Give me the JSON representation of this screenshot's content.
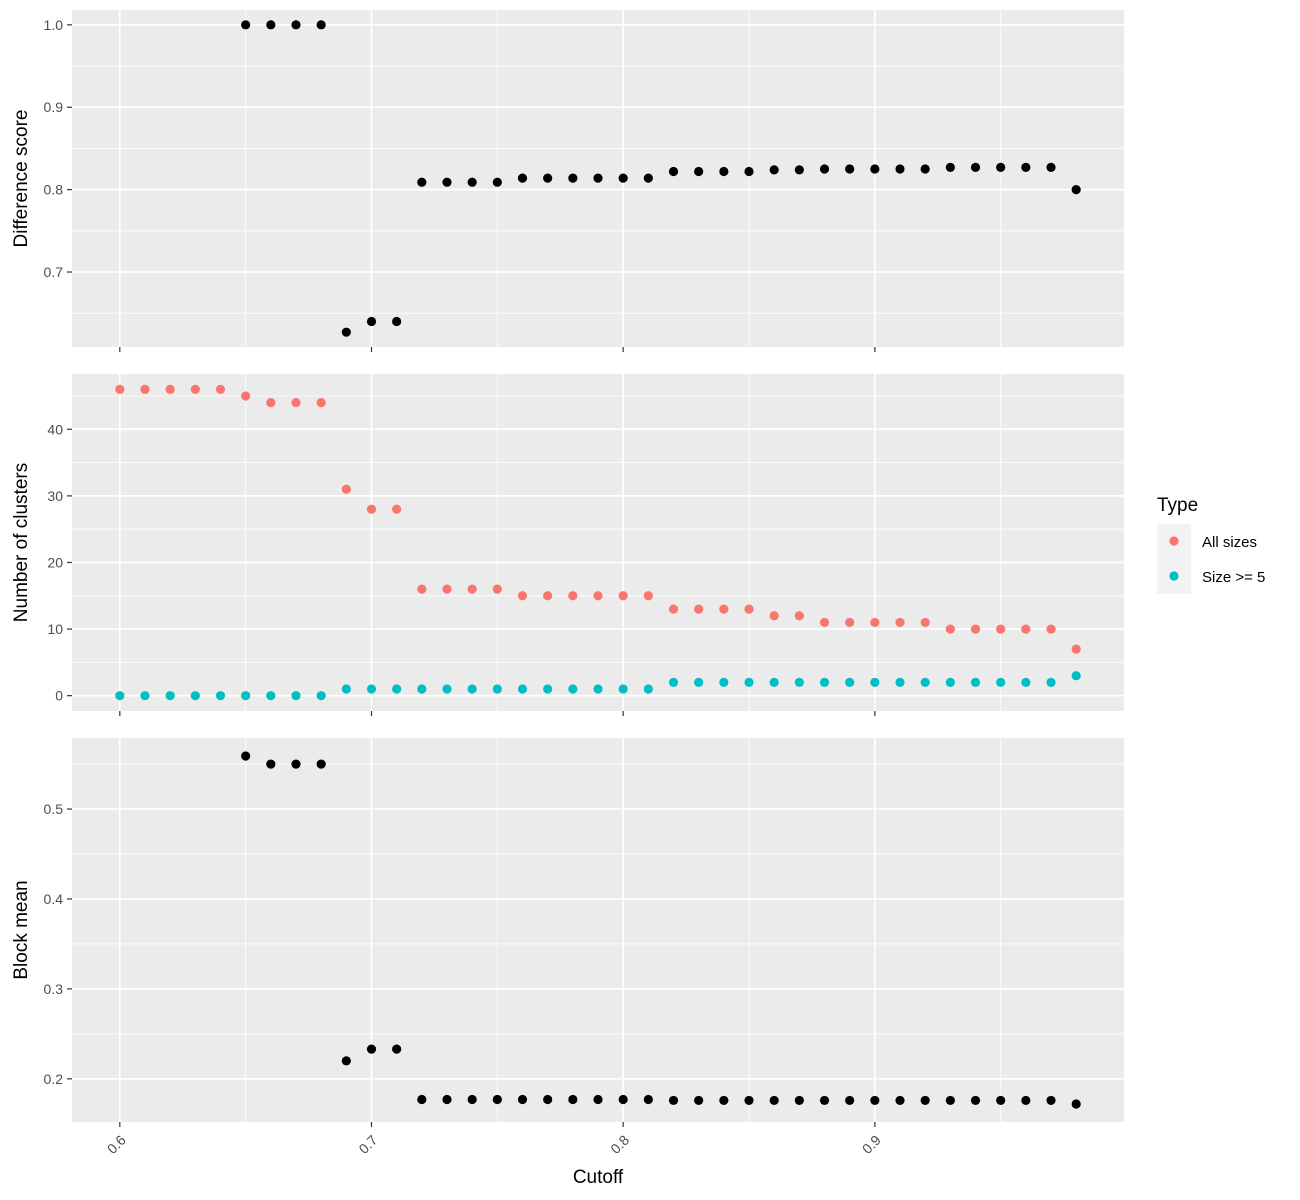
{
  "chart_data": [
    {
      "type": "scatter",
      "title": "",
      "xlabel": "Cutoff",
      "ylabel": "Difference score",
      "xlim": [
        0.581,
        0.999
      ],
      "ylim": [
        0.609,
        1.018
      ],
      "x_ticks": [
        0.6,
        0.7,
        0.8,
        0.9
      ],
      "x_tick_labels": [
        "0.6",
        "0.7",
        "0.8",
        "0.9"
      ],
      "y_ticks": [
        0.7,
        0.8,
        0.9,
        1.0
      ],
      "y_tick_labels": [
        "0.7",
        "0.8",
        "0.9",
        "1.0"
      ],
      "grid": true,
      "series": [
        {
          "color": "#000000",
          "points": [
            [
              0.65,
              1.0
            ],
            [
              0.66,
              1.0
            ],
            [
              0.67,
              1.0
            ],
            [
              0.68,
              1.0
            ],
            [
              0.69,
              0.627
            ],
            [
              0.7,
              0.64
            ],
            [
              0.71,
              0.64
            ],
            [
              0.72,
              0.809
            ],
            [
              0.73,
              0.809
            ],
            [
              0.74,
              0.809
            ],
            [
              0.75,
              0.809
            ],
            [
              0.76,
              0.814
            ],
            [
              0.77,
              0.814
            ],
            [
              0.78,
              0.814
            ],
            [
              0.79,
              0.814
            ],
            [
              0.8,
              0.814
            ],
            [
              0.81,
              0.814
            ],
            [
              0.82,
              0.822
            ],
            [
              0.83,
              0.822
            ],
            [
              0.84,
              0.822
            ],
            [
              0.85,
              0.822
            ],
            [
              0.86,
              0.824
            ],
            [
              0.87,
              0.824
            ],
            [
              0.88,
              0.825
            ],
            [
              0.89,
              0.825
            ],
            [
              0.9,
              0.825
            ],
            [
              0.91,
              0.825
            ],
            [
              0.92,
              0.825
            ],
            [
              0.93,
              0.827
            ],
            [
              0.94,
              0.827
            ],
            [
              0.95,
              0.827
            ],
            [
              0.96,
              0.827
            ],
            [
              0.97,
              0.827
            ],
            [
              0.98,
              0.8
            ]
          ]
        }
      ]
    },
    {
      "type": "scatter",
      "title": "",
      "xlabel": "Cutoff",
      "ylabel": "Number of clusters",
      "xlim": [
        0.581,
        0.999
      ],
      "ylim": [
        -2.3,
        48.3
      ],
      "x_ticks": [
        0.6,
        0.7,
        0.8,
        0.9
      ],
      "x_tick_labels": [
        "0.6",
        "0.7",
        "0.8",
        "0.9"
      ],
      "y_ticks": [
        0,
        10,
        20,
        30,
        40
      ],
      "y_tick_labels": [
        "0",
        "10",
        "20",
        "30",
        "40"
      ],
      "grid": true,
      "legend": {
        "title": "Type",
        "position": "right"
      },
      "series": [
        {
          "name": "All sizes",
          "color": "#F8766D",
          "points": [
            [
              0.6,
              46
            ],
            [
              0.61,
              46
            ],
            [
              0.62,
              46
            ],
            [
              0.63,
              46
            ],
            [
              0.64,
              46
            ],
            [
              0.65,
              45
            ],
            [
              0.66,
              44
            ],
            [
              0.67,
              44
            ],
            [
              0.68,
              44
            ],
            [
              0.69,
              31
            ],
            [
              0.7,
              28
            ],
            [
              0.71,
              28
            ],
            [
              0.72,
              16
            ],
            [
              0.73,
              16
            ],
            [
              0.74,
              16
            ],
            [
              0.75,
              16
            ],
            [
              0.76,
              15
            ],
            [
              0.77,
              15
            ],
            [
              0.78,
              15
            ],
            [
              0.79,
              15
            ],
            [
              0.8,
              15
            ],
            [
              0.81,
              15
            ],
            [
              0.82,
              13
            ],
            [
              0.83,
              13
            ],
            [
              0.84,
              13
            ],
            [
              0.85,
              13
            ],
            [
              0.86,
              12
            ],
            [
              0.87,
              12
            ],
            [
              0.88,
              11
            ],
            [
              0.89,
              11
            ],
            [
              0.9,
              11
            ],
            [
              0.91,
              11
            ],
            [
              0.92,
              11
            ],
            [
              0.93,
              10
            ],
            [
              0.94,
              10
            ],
            [
              0.95,
              10
            ],
            [
              0.96,
              10
            ],
            [
              0.97,
              10
            ],
            [
              0.98,
              7
            ]
          ]
        },
        {
          "name": "Size >= 5",
          "color": "#00BFC4",
          "points": [
            [
              0.6,
              0
            ],
            [
              0.61,
              0
            ],
            [
              0.62,
              0
            ],
            [
              0.63,
              0
            ],
            [
              0.64,
              0
            ],
            [
              0.65,
              0
            ],
            [
              0.66,
              0
            ],
            [
              0.67,
              0
            ],
            [
              0.68,
              0
            ],
            [
              0.69,
              1
            ],
            [
              0.7,
              1
            ],
            [
              0.71,
              1
            ],
            [
              0.72,
              1
            ],
            [
              0.73,
              1
            ],
            [
              0.74,
              1
            ],
            [
              0.75,
              1
            ],
            [
              0.76,
              1
            ],
            [
              0.77,
              1
            ],
            [
              0.78,
              1
            ],
            [
              0.79,
              1
            ],
            [
              0.8,
              1
            ],
            [
              0.81,
              1
            ],
            [
              0.82,
              2
            ],
            [
              0.83,
              2
            ],
            [
              0.84,
              2
            ],
            [
              0.85,
              2
            ],
            [
              0.86,
              2
            ],
            [
              0.87,
              2
            ],
            [
              0.88,
              2
            ],
            [
              0.89,
              2
            ],
            [
              0.9,
              2
            ],
            [
              0.91,
              2
            ],
            [
              0.92,
              2
            ],
            [
              0.93,
              2
            ],
            [
              0.94,
              2
            ],
            [
              0.95,
              2
            ],
            [
              0.96,
              2
            ],
            [
              0.97,
              2
            ],
            [
              0.98,
              3
            ]
          ]
        }
      ]
    },
    {
      "type": "scatter",
      "title": "",
      "xlabel": "Cutoff",
      "ylabel": "Block mean",
      "xlim": [
        0.581,
        0.999
      ],
      "ylim": [
        0.152,
        0.579
      ],
      "x_ticks": [
        0.6,
        0.7,
        0.8,
        0.9
      ],
      "x_tick_labels": [
        "0.6",
        "0.7",
        "0.8",
        "0.9"
      ],
      "y_ticks": [
        0.2,
        0.3,
        0.4,
        0.5
      ],
      "y_tick_labels": [
        "0.2",
        "0.3",
        "0.4",
        "0.5"
      ],
      "grid": true,
      "series": [
        {
          "color": "#000000",
          "points": [
            [
              0.65,
              0.559
            ],
            [
              0.66,
              0.55
            ],
            [
              0.67,
              0.55
            ],
            [
              0.68,
              0.55
            ],
            [
              0.69,
              0.22
            ],
            [
              0.7,
              0.233
            ],
            [
              0.71,
              0.233
            ],
            [
              0.72,
              0.177
            ],
            [
              0.73,
              0.177
            ],
            [
              0.74,
              0.177
            ],
            [
              0.75,
              0.177
            ],
            [
              0.76,
              0.177
            ],
            [
              0.77,
              0.177
            ],
            [
              0.78,
              0.177
            ],
            [
              0.79,
              0.177
            ],
            [
              0.8,
              0.177
            ],
            [
              0.81,
              0.177
            ],
            [
              0.82,
              0.176
            ],
            [
              0.83,
              0.176
            ],
            [
              0.84,
              0.176
            ],
            [
              0.85,
              0.176
            ],
            [
              0.86,
              0.176
            ],
            [
              0.87,
              0.176
            ],
            [
              0.88,
              0.176
            ],
            [
              0.89,
              0.176
            ],
            [
              0.9,
              0.176
            ],
            [
              0.91,
              0.176
            ],
            [
              0.92,
              0.176
            ],
            [
              0.93,
              0.176
            ],
            [
              0.94,
              0.176
            ],
            [
              0.95,
              0.176
            ],
            [
              0.96,
              0.176
            ],
            [
              0.97,
              0.176
            ],
            [
              0.98,
              0.172
            ]
          ]
        }
      ]
    }
  ]
}
